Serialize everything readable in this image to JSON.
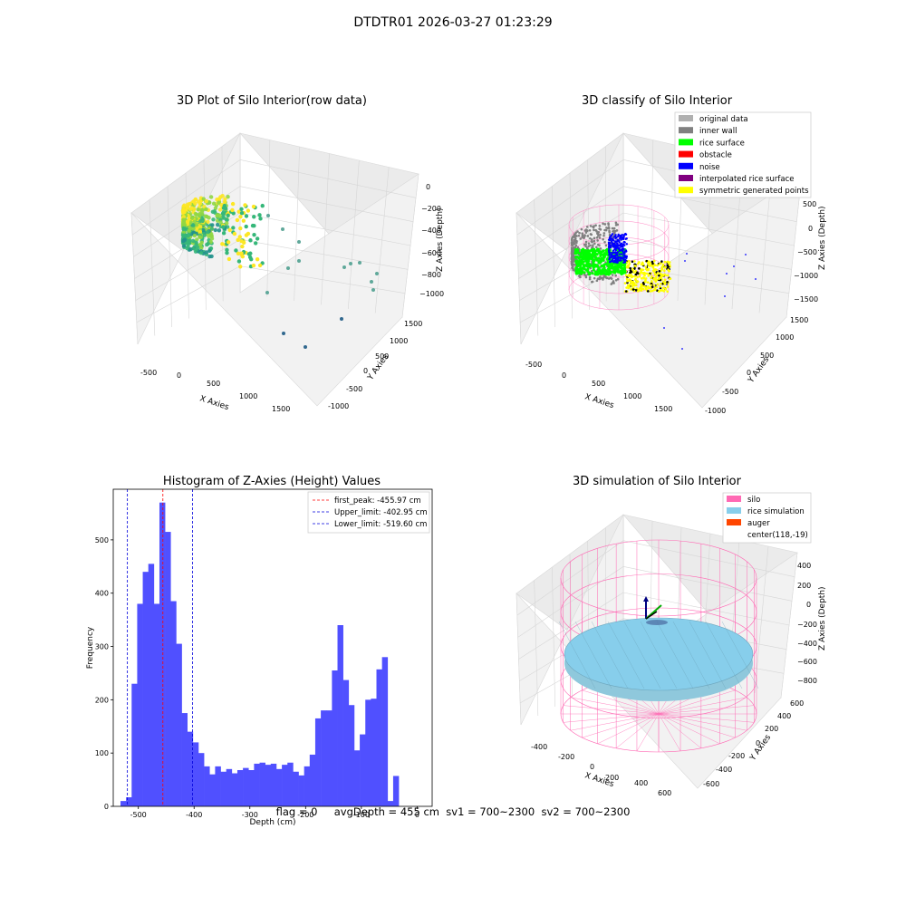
{
  "suptitle": "DTDTR01 2026-03-27 01:23:29",
  "footer": "flag = 0     avgDepth = 455 cm  sv1 = 700~2300  sv2 = 700~2300",
  "colors": {
    "hist_bar": "#5050ff",
    "peak_line": "#ff0000",
    "limit_line": "#0000dd",
    "silo": "#ff69b4",
    "rice": "#87ceeb",
    "auger": "#ff4500"
  },
  "chart_data": [
    {
      "type": "scatter",
      "title": "3D Plot of Silo Interior(row data)",
      "xlabel": "X Axies",
      "ylabel": "Y Axies",
      "zlabel": "Z Axies (Depth)",
      "x_ticks": [
        "-500",
        "0",
        "500",
        "1000",
        "1500"
      ],
      "y_ticks": [
        "-1000",
        "-500",
        "0",
        "500",
        "1000",
        "1500"
      ],
      "z_ticks": [
        "0",
        "−200",
        "−400",
        "−600",
        "−800",
        "−1000"
      ]
    },
    {
      "type": "scatter",
      "title": "3D classify of Silo Interior",
      "xlabel": "X Axies",
      "ylabel": "Y Axies",
      "zlabel": "Z Axies (Depth)",
      "x_ticks": [
        "-500",
        "0",
        "500",
        "1000",
        "1500"
      ],
      "y_ticks": [
        "-1000",
        "-500",
        "0",
        "500",
        "1000",
        "1500"
      ],
      "z_ticks": [
        "500",
        "0",
        "−500",
        "−1000",
        "−1500"
      ],
      "legend": [
        {
          "label": "original data",
          "color": "#b0b0b0"
        },
        {
          "label": "inner wall",
          "color": "#808080"
        },
        {
          "label": "rice surface",
          "color": "#00ff00"
        },
        {
          "label": "obstacle",
          "color": "#ff0000"
        },
        {
          "label": "noise",
          "color": "#0000ff"
        },
        {
          "label": "interpolated rice surface",
          "color": "#800080"
        },
        {
          "label": "symmetric generated points",
          "color": "#ffff00"
        }
      ]
    },
    {
      "type": "bar",
      "title": "Histogram of Z-Axies (Height) Values",
      "xlabel": "Depth (cm)",
      "ylabel": "Frequency",
      "xlim": [
        -545,
        27
      ],
      "ylim": [
        0,
        595
      ],
      "x_ticks": [
        "-500",
        "-400",
        "-300",
        "-200",
        "-100",
        "0"
      ],
      "y_ticks": [
        "0",
        "100",
        "200",
        "300",
        "400",
        "500"
      ],
      "bin_start": -532,
      "bin_width": 9.98,
      "values": [
        10,
        17,
        230,
        380,
        440,
        455,
        380,
        570,
        515,
        385,
        305,
        175,
        140,
        120,
        100,
        75,
        60,
        75,
        65,
        70,
        62,
        68,
        72,
        68,
        80,
        82,
        78,
        80,
        70,
        78,
        82,
        65,
        58,
        75,
        97,
        165,
        180,
        180,
        255,
        340,
        237,
        190,
        105,
        135,
        200,
        202,
        257,
        280,
        10,
        57
      ],
      "vlines": [
        {
          "label": "first_peak: -455.97 cm",
          "x": -455.97,
          "color": "#ff0000"
        },
        {
          "label": "Upper_limit: -402.95 cm",
          "x": -402.95,
          "color": "#0000dd"
        },
        {
          "label": "Lower_limit: -519.60 cm",
          "x": -519.6,
          "color": "#0000dd"
        }
      ]
    },
    {
      "type": "scatter",
      "title": "3D simulation of Silo Interior",
      "xlabel": "X Axies",
      "ylabel": "Y Axies",
      "zlabel": "Z Axies (Depth)",
      "x_ticks": [
        "-400",
        "-200",
        "0",
        "200",
        "400",
        "600"
      ],
      "y_ticks": [
        "-600",
        "-400",
        "-200",
        "0",
        "200",
        "400",
        "600"
      ],
      "z_ticks": [
        "400",
        "200",
        "0",
        "−200",
        "−400",
        "−600",
        "−800"
      ],
      "legend": [
        {
          "label": "silo",
          "color": "#ff69b4"
        },
        {
          "label": "rice simulation",
          "color": "#87ceeb"
        },
        {
          "label": "auger",
          "color": "#ff4500"
        },
        {
          "label": "center(118,-19)",
          "color": ""
        }
      ]
    }
  ]
}
